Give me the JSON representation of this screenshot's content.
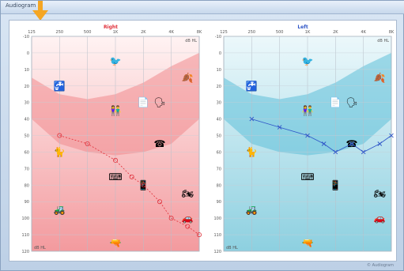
{
  "window": {
    "title": "Audiogram",
    "status": "© Audiogram"
  },
  "panels": [
    {
      "id": "right",
      "title": "Right",
      "color": "#e0303a",
      "bg_top": "#fff3f3",
      "bg_bottom": "#f39a9e",
      "banana": "#f08a8e",
      "marker": "circle",
      "unit_label": "dB HL",
      "corner_label": "dB HL"
    },
    {
      "id": "left",
      "title": "Left",
      "color": "#2f56c8",
      "bg_top": "#ecf8fb",
      "bg_bottom": "#8dd0e0",
      "banana": "#5fbfd8",
      "marker": "cross",
      "unit_label": "dB HL",
      "corner_label": "dB HL"
    }
  ],
  "chart_data": [
    {
      "type": "line",
      "title": "Right",
      "x_ticks": [
        "125",
        "250",
        "500",
        "1K",
        "2K",
        "4K",
        "8K"
      ],
      "y_ticks": [
        "-10",
        "0",
        "10",
        "20",
        "30",
        "40",
        "50",
        "60",
        "70",
        "80",
        "90",
        "100",
        "110",
        "120"
      ],
      "ylim": [
        -10,
        120
      ],
      "series": [
        {
          "x": [
            250,
            500,
            1000,
            1500,
            2000,
            3000,
            4000,
            6000,
            8000
          ],
          "y": [
            50,
            55,
            65,
            75,
            80,
            90,
            100,
            105,
            110
          ]
        }
      ]
    },
    {
      "type": "line",
      "title": "Left",
      "x_ticks": [
        "125",
        "250",
        "500",
        "1K",
        "2K",
        "4K",
        "8K"
      ],
      "y_ticks": [
        "-10",
        "0",
        "10",
        "20",
        "30",
        "40",
        "50",
        "60",
        "70",
        "80",
        "90",
        "100",
        "110",
        "120"
      ],
      "ylim": [
        -10,
        120
      ],
      "series": [
        {
          "x": [
            250,
            500,
            1000,
            1500,
            2000,
            3000,
            4000,
            6000,
            8000
          ],
          "y": [
            40,
            45,
            50,
            55,
            60,
            55,
            60,
            55,
            50
          ]
        }
      ]
    }
  ],
  "sounds": [
    {
      "name": "birds-icon",
      "f": 1000,
      "db": 5,
      "glyph": "🐦"
    },
    {
      "name": "leaves-icon",
      "f": 6000,
      "db": 15,
      "glyph": "🍂"
    },
    {
      "name": "faucet-icon",
      "f": 250,
      "db": 20,
      "glyph": "🚰"
    },
    {
      "name": "children-talking-icon",
      "f": 1000,
      "db": 35,
      "glyph": "👫"
    },
    {
      "name": "paper-icon",
      "f": 2000,
      "db": 30,
      "glyph": "📄"
    },
    {
      "name": "speech-icon",
      "f": 3000,
      "db": 30,
      "glyph": "🗣"
    },
    {
      "name": "cat-icon",
      "f": 250,
      "db": 60,
      "glyph": "🐈"
    },
    {
      "name": "phone-icon",
      "f": 3000,
      "db": 55,
      "glyph": "☎"
    },
    {
      "name": "typewriter-icon",
      "f": 1000,
      "db": 75,
      "glyph": "⌨"
    },
    {
      "name": "mobile-phone-icon",
      "f": 2000,
      "db": 80,
      "glyph": "📱"
    },
    {
      "name": "motorcycle-icon",
      "f": 6000,
      "db": 85,
      "glyph": "🏍"
    },
    {
      "name": "lawnmower-icon",
      "f": 250,
      "db": 95,
      "glyph": "🚜"
    },
    {
      "name": "car-icon",
      "f": 6000,
      "db": 100,
      "glyph": "🚗"
    },
    {
      "name": "gun-icon",
      "f": 1000,
      "db": 115,
      "glyph": "🔫"
    }
  ]
}
